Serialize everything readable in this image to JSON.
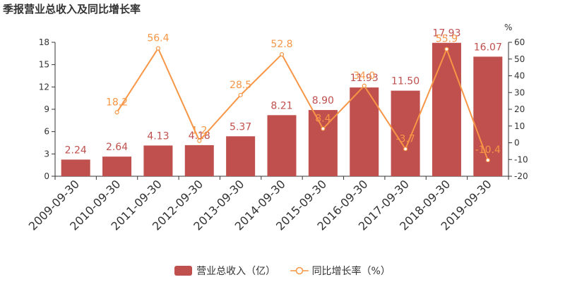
{
  "title": "季报营业总收入及同比增长率",
  "chart_data": {
    "type": "bar",
    "categories": [
      "2009-09-30",
      "2010-09-30",
      "2011-09-30",
      "2012-09-30",
      "2013-09-30",
      "2014-09-30",
      "2015-09-30",
      "2016-09-30",
      "2017-09-30",
      "2018-09-30",
      "2019-09-30"
    ],
    "series": [
      {
        "name": "营业总收入（亿）",
        "type": "bar",
        "axis": "left",
        "color": "#c0504d",
        "values": [
          2.24,
          2.64,
          4.13,
          4.18,
          5.37,
          8.21,
          8.9,
          11.93,
          11.5,
          17.93,
          16.07
        ],
        "labels": [
          "2.24",
          "2.64",
          "4.13",
          "4.18",
          "5.37",
          "8.21",
          "8.90",
          "11.93",
          "11.50",
          "17.93",
          "16.07"
        ]
      },
      {
        "name": "同比增长率（%）",
        "type": "line",
        "axis": "right",
        "color": "#f79646",
        "values": [
          null,
          18.2,
          56.4,
          1.2,
          28.5,
          52.8,
          8.4,
          34.0,
          -3.7,
          55.9,
          -10.4
        ],
        "labels": [
          "",
          "18.2",
          "56.4",
          "1.2",
          "28.5",
          "52.8",
          "8.4",
          "34.0",
          "-3.7",
          "55.9",
          "-10.4"
        ]
      }
    ],
    "y_left": {
      "min": 0,
      "max": 18,
      "ticks": [
        0,
        3,
        6,
        9,
        12,
        15,
        18
      ]
    },
    "y_right": {
      "min": -20,
      "max": 60,
      "unit": "%",
      "ticks": [
        -20,
        -10,
        0,
        10,
        20,
        30,
        40,
        50,
        60
      ]
    },
    "grid": false,
    "legend": "bottom-center"
  }
}
